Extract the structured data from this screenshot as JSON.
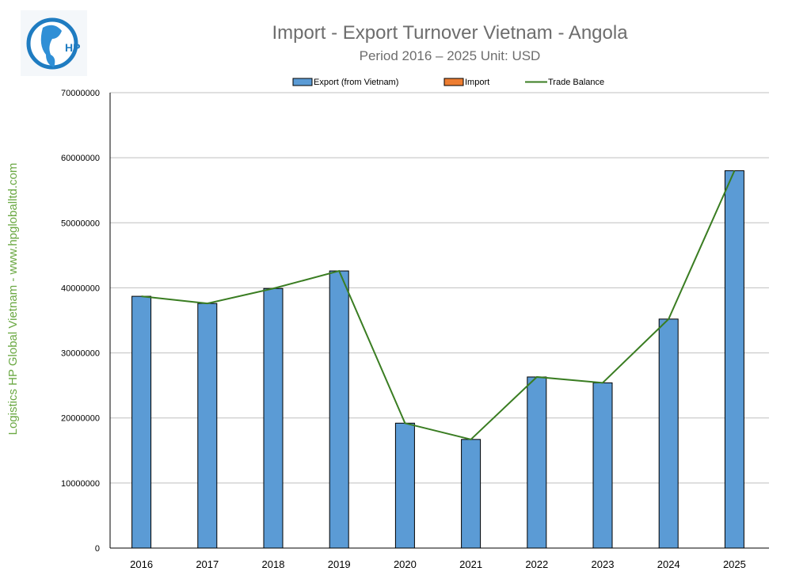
{
  "chart_data": {
    "type": "bar",
    "title": "Import - Export Turnover Vietnam - Angola",
    "subtitle": "Period 2016 – 2025  Unit: USD",
    "xlabel": "",
    "ylabel": "",
    "categories": [
      "2016",
      "2017",
      "2018",
      "2019",
      "2020",
      "2021",
      "2022",
      "2023",
      "2024",
      "2025"
    ],
    "series": [
      {
        "name": "Export (from Vietnam)",
        "type": "bar",
        "color": "#5b9bd5",
        "values": [
          38700000,
          37600000,
          39900000,
          42600000,
          19200000,
          16700000,
          26300000,
          25400000,
          35200000,
          58000000
        ]
      },
      {
        "name": "Import",
        "type": "bar",
        "color": "#ed7d31",
        "values": [
          0,
          0,
          0,
          0,
          0,
          0,
          0,
          0,
          0,
          0
        ]
      },
      {
        "name": "Trade Balance",
        "type": "line",
        "color": "#3a7d22",
        "values": [
          38700000,
          37600000,
          39900000,
          42600000,
          19200000,
          16700000,
          26300000,
          25400000,
          35200000,
          58000000
        ]
      }
    ],
    "ylim": [
      0,
      70000000
    ],
    "yticks": [
      "0",
      "10000000",
      "20000000",
      "30000000",
      "40000000",
      "50000000",
      "60000000",
      "70000000"
    ],
    "grid": true,
    "legend_position": "top"
  },
  "watermark": "Logistics HP Global Vietnam - www.hpgloballtd.com",
  "logo_text": "HP"
}
